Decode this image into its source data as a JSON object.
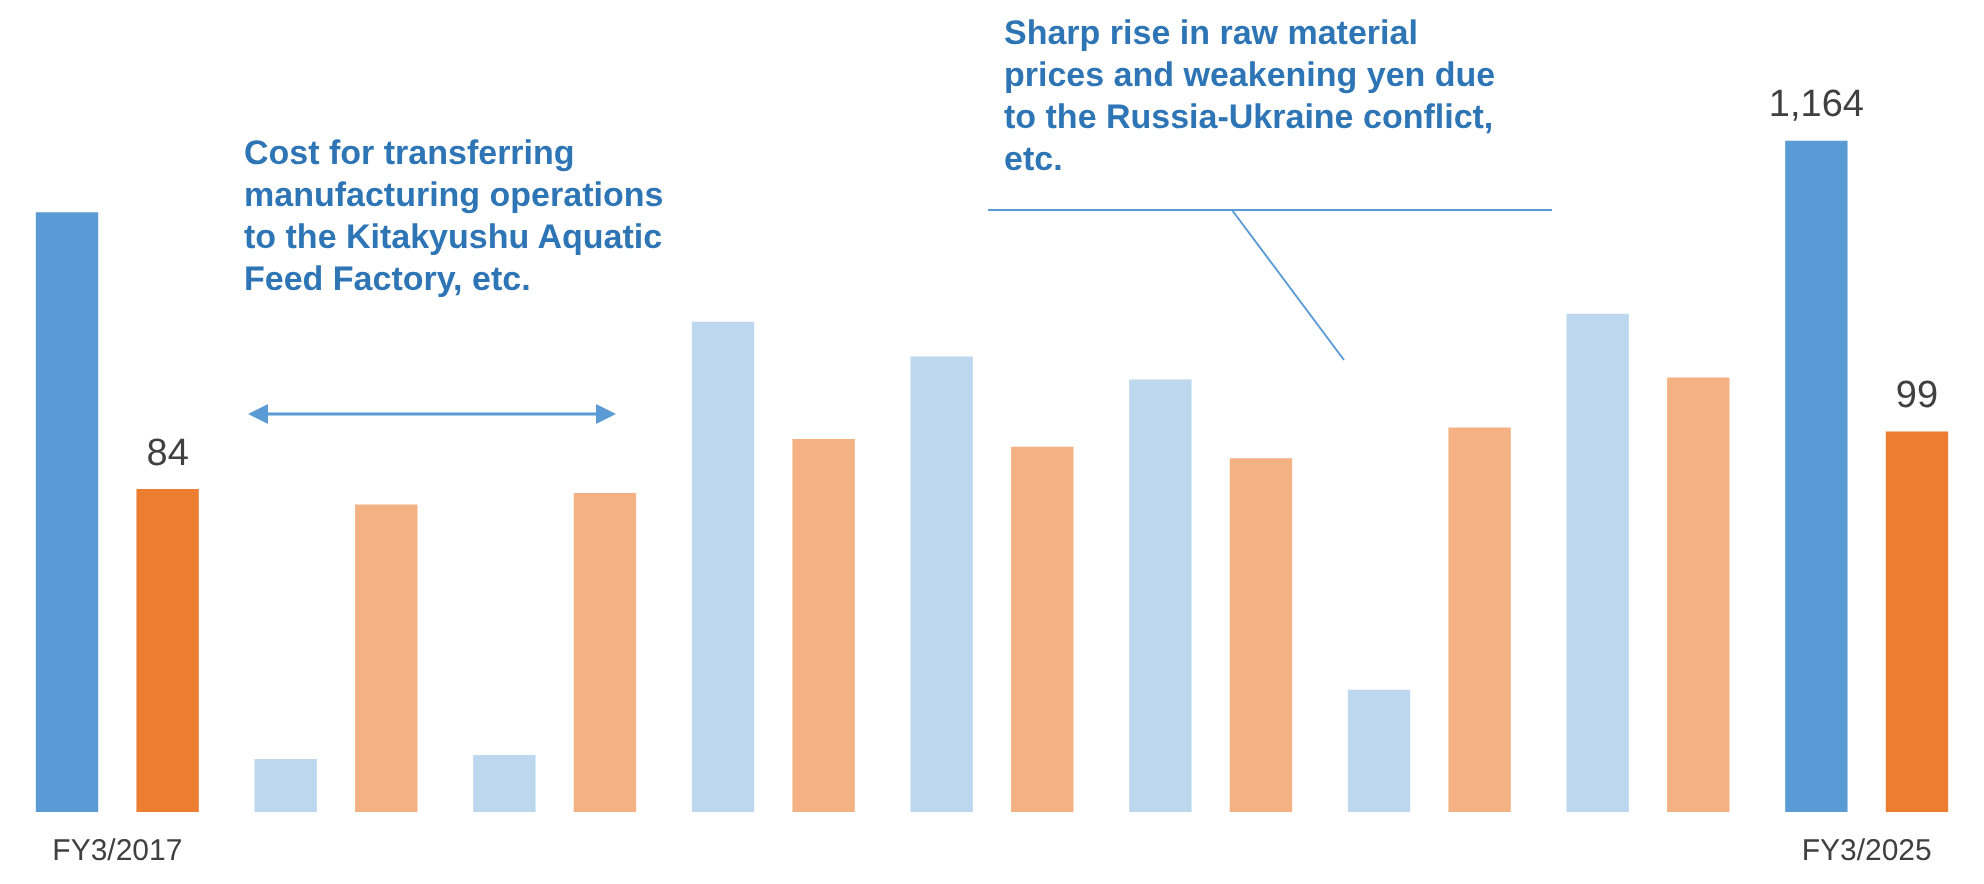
{
  "chart_data": {
    "type": "bar",
    "categories": [
      "FY3/2017",
      null,
      null,
      null,
      null,
      null,
      null,
      null,
      "FY3/2025"
    ],
    "series": [
      {
        "colors": [
          "#5b9bd5",
          "#bdd7ee",
          "#bdd7ee",
          "#bdd7ee",
          "#bdd7ee",
          "#bdd7ee",
          "#bdd7ee",
          "#bdd7ee",
          "#5b9bd5"
        ],
        "values": [
          1040,
          92,
          99,
          850,
          790,
          750,
          212,
          864,
          1164
        ],
        "value_labels": [
          null,
          null,
          null,
          null,
          null,
          null,
          null,
          null,
          "1,164"
        ]
      },
      {
        "colors": [
          "#ed7d31",
          "#f4b183",
          "#f4b183",
          "#f4b183",
          "#f4b183",
          "#f4b183",
          "#f4b183",
          "#f4b183",
          "#ed7d31"
        ],
        "values": [
          84,
          80,
          83,
          97,
          95,
          92,
          100,
          113,
          99
        ],
        "value_labels": [
          "84",
          null,
          null,
          null,
          null,
          null,
          null,
          null,
          "99"
        ],
        "axis": "y2"
      }
    ],
    "tick_labels": "x",
    "annotations": [
      "Cost for transferring manufacturing operations to the Kitakyushu Aquatic Feed Factory, etc.",
      "Sharp rise in raw material prices and weakening yen due to the Russia-Ukraine conflict, etc."
    ]
  }
}
